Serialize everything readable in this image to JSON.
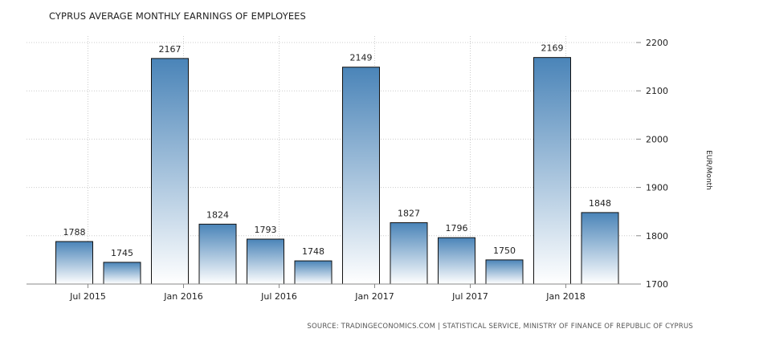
{
  "chart_data": {
    "type": "bar",
    "title": "CYPRUS AVERAGE MONTHLY EARNINGS OF EMPLOYEES",
    "ylabel": "EUR/Month",
    "xlabel": "",
    "ylim": [
      1700,
      2200
    ],
    "yticks": [
      1700,
      1800,
      1900,
      2000,
      2100,
      2200
    ],
    "y_axis_side": "right",
    "grid": true,
    "categories": [
      "Jun 2015",
      "Sep 2015",
      "Dec 2015",
      "Mar 2016",
      "Jun 2016",
      "Sep 2016",
      "Dec 2016",
      "Mar 2017",
      "Jun 2017",
      "Sep 2017",
      "Dec 2017",
      "Mar 2018"
    ],
    "values": [
      1788,
      1745,
      2167,
      1824,
      1793,
      1748,
      2149,
      1827,
      1796,
      1750,
      2169,
      1848
    ],
    "xtick_labels": [
      "Jul 2015",
      "Jan 2016",
      "Jul 2016",
      "Jan 2017",
      "Jul 2017",
      "Jan 2018"
    ],
    "source": "SOURCE: TRADINGECONOMICS.COM  |  STATISTICAL SERVICE, MINISTRY OF FINANCE OF REPUBLIC OF CYPRUS",
    "colors": {
      "bar_top": "#4a84b8",
      "bar_bottom": "#ffffff",
      "bar_stroke": "#111111",
      "grid": "#cccccc"
    }
  }
}
